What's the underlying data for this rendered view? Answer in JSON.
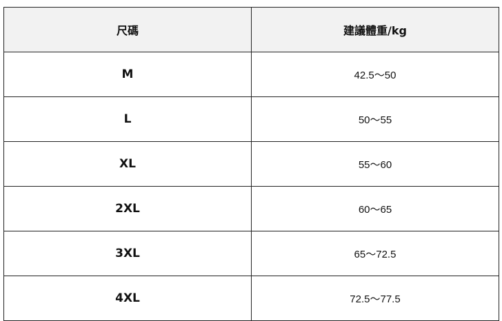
{
  "table": {
    "headers": [
      "尺碼",
      "建議體重/kg"
    ],
    "rows": [
      {
        "size": "M",
        "weight": "42.5～50"
      },
      {
        "size": "L",
        "weight": "50～55"
      },
      {
        "size": "XL",
        "weight": "55～60"
      },
      {
        "size": "2XL",
        "weight": "60～65"
      },
      {
        "size": "3XL",
        "weight": "65～72.5"
      },
      {
        "size": "4XL",
        "weight": "72.5～77.5"
      }
    ]
  },
  "colors": {
    "header_bg": "#f2f2f2",
    "border": "#222222"
  }
}
